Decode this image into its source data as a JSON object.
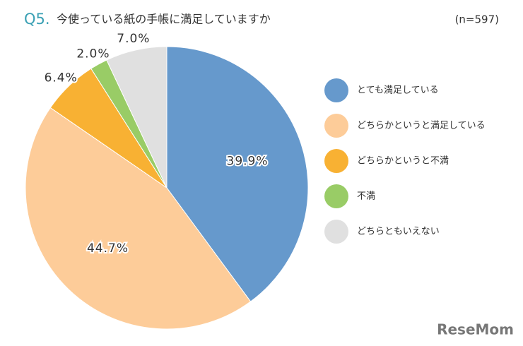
{
  "chart_data": {
    "type": "pie",
    "question_number": "Q5.",
    "title": "今使っている紙の手帳に満足していますか",
    "sample_size": "(n=597)",
    "watermark": "ReseMom",
    "categories": [
      "とても満足している",
      "どちらかというと満足している",
      "どちらかというと不満",
      "不満",
      "どちらともいえない"
    ],
    "values": [
      39.9,
      44.7,
      6.4,
      2.0,
      7.0
    ],
    "value_labels": [
      "39.9%",
      "44.7%",
      "6.4%",
      "2.0%",
      "7.0%"
    ],
    "colors": [
      "#6699cc",
      "#fdcc99",
      "#f8b133",
      "#99cc66",
      "#e0e0e0"
    ],
    "legend": "right"
  }
}
